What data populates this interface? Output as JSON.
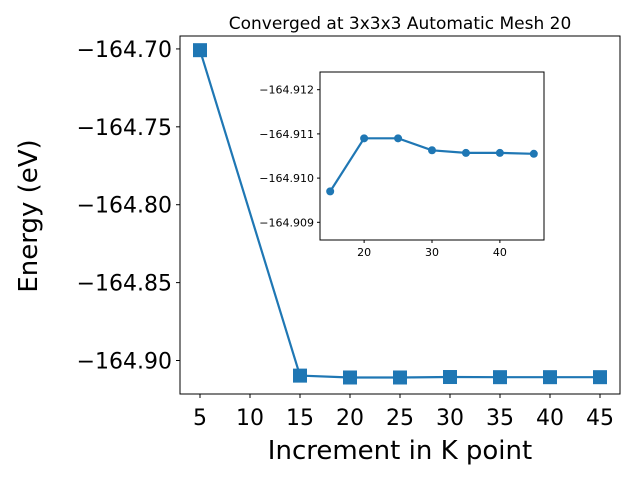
{
  "chart_data": [
    {
      "type": "line",
      "title": "Converged at 3x3x3 Automatic Mesh 20",
      "xlabel": "Increment in K point",
      "ylabel": "Energy (eV)",
      "x_ticks": [
        "5",
        "10",
        "15",
        "20",
        "25",
        "30",
        "35",
        "40",
        "45"
      ],
      "y_ticks": [
        "−164.70",
        "−164.75",
        "−164.80",
        "−164.85",
        "−164.90"
      ],
      "xlim": [
        3.0,
        47.0
      ],
      "ylim": [
        -164.9215,
        -164.6917
      ],
      "marker": "square",
      "color": "#1f77b4",
      "grid": false,
      "series": [
        {
          "x": [
            5,
            15,
            20,
            25,
            30,
            35,
            40,
            45
          ],
          "y": [
            -164.7008,
            -164.9097,
            -164.9109,
            -164.9109,
            -164.9106,
            -164.9107,
            -164.9107,
            -164.9107
          ]
        }
      ]
    },
    {
      "type": "line",
      "inset": true,
      "x_ticks": [
        "20",
        "30",
        "40"
      ],
      "y_ticks": [
        "−164.912",
        "−164.911",
        "−164.910",
        "−164.909"
      ],
      "xlim": [
        13.5,
        46.5
      ],
      "ylim": [
        -164.9124,
        -164.9086
      ],
      "y_inverted": true,
      "marker": "circle",
      "color": "#1f77b4",
      "grid": false,
      "series": [
        {
          "x": [
            15,
            20,
            25,
            30,
            35,
            40,
            45
          ],
          "y": [
            -164.9097,
            -164.9109,
            -164.9109,
            -164.91063,
            -164.91057,
            -164.91057,
            -164.91055
          ]
        }
      ]
    }
  ]
}
